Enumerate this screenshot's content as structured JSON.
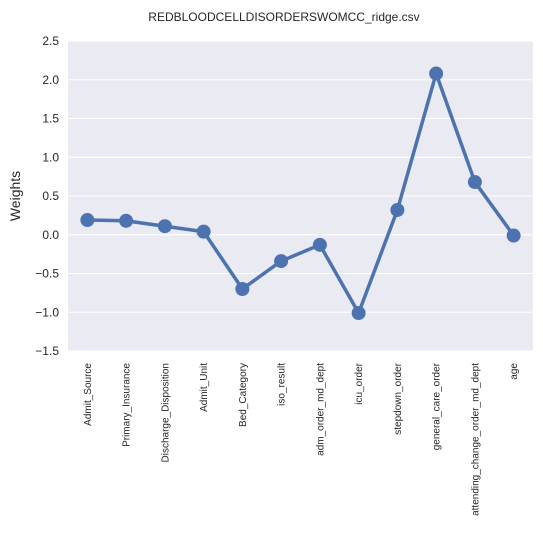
{
  "chart_data": {
    "type": "line",
    "title": "REDBLOODCELLDISORDERSWOMCC_ridge.csv",
    "xlabel": "",
    "ylabel": "Weights",
    "categories": [
      "Admit_Source",
      "Primary_Insurance",
      "Discharge_Disposition",
      "Admit_Unit",
      "Bed_Category",
      "iso_result",
      "adm_order_md_dept",
      "icu_order",
      "stepdown_order",
      "general_care_order",
      "attending_change_order_md_dept",
      "age"
    ],
    "values": [
      0.19,
      0.18,
      0.11,
      0.04,
      -0.7,
      -0.34,
      -0.13,
      -1.01,
      0.32,
      2.08,
      0.68,
      -0.01
    ],
    "ylim": [
      -1.5,
      2.5
    ],
    "yticks": [
      "−1.5",
      "−1.0",
      "−0.5",
      "0.0",
      "0.5",
      "1.0",
      "1.5",
      "2.0",
      "2.5"
    ],
    "ytick_values": [
      -1.5,
      -1.0,
      -0.5,
      0.0,
      0.5,
      1.0,
      1.5,
      2.0,
      2.5
    ],
    "grid": true,
    "colors": {
      "line": "#4c72b0",
      "background": "#eaeaf2",
      "grid": "#ffffff"
    }
  }
}
